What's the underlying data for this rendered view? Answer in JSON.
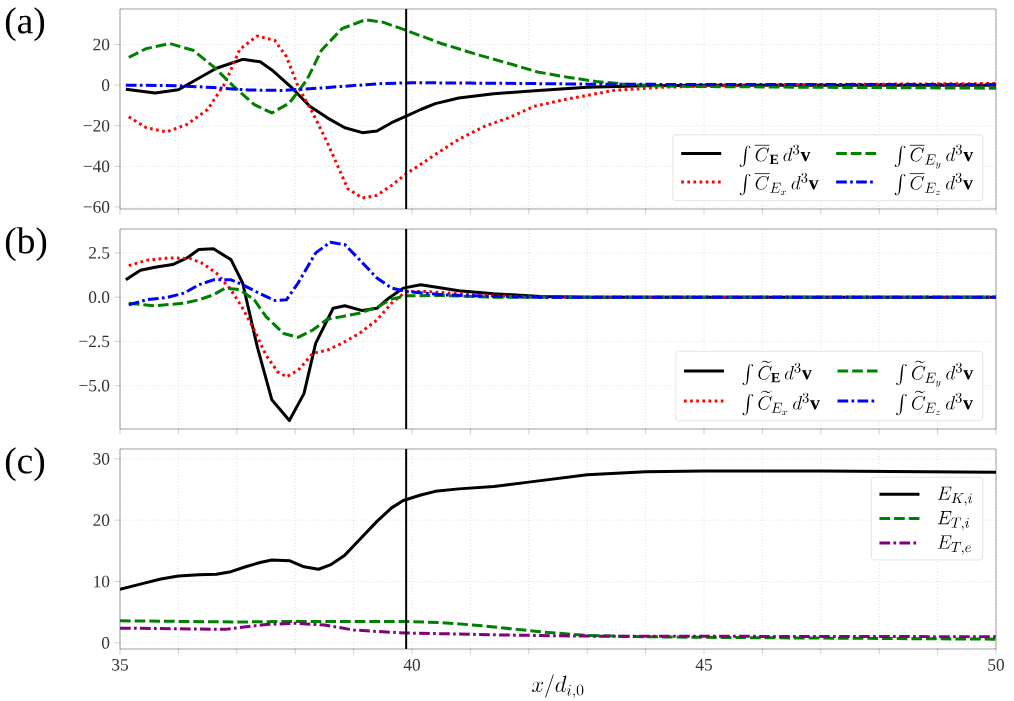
{
  "chart_data": [
    {
      "type": "line",
      "title": "(a)",
      "xlim": [
        35,
        50
      ],
      "ylim": [
        -61,
        37.5
      ],
      "xticks": [
        35,
        {
          "value": 36,
          "label": null
        },
        {
          "value": 37,
          "label": null
        },
        {
          "value": 38,
          "label": null
        },
        {
          "value": 39,
          "label": null
        },
        40,
        {
          "value": 41,
          "label": null
        },
        {
          "value": 42,
          "label": null
        },
        {
          "value": 43,
          "label": null
        },
        {
          "value": 44,
          "label": null
        },
        45,
        {
          "value": 46,
          "label": null
        },
        {
          "value": 47,
          "label": null
        },
        {
          "value": 48,
          "label": null
        },
        {
          "value": 49,
          "label": null
        },
        50
      ],
      "yticks": [
        {
          "value": -60,
          "label": "−60"
        },
        {
          "value": -40,
          "label": "−40"
        },
        {
          "value": -20,
          "label": "−20"
        },
        0,
        20
      ],
      "tick_labels": "y",
      "grid": true,
      "legend": "bottom right",
      "ref_lines": [
        {
          "axis": "x",
          "value": 39.9,
          "color": "#000000"
        }
      ],
      "series": [
        {
          "name": "\\int \\overline{C}_{\\mathbf{E}}\\, d^3\\mathbf{v}",
          "color": "#000000",
          "line_style": "solid",
          "x": [
            35.1,
            35.6,
            36.0,
            36.25,
            36.65,
            37.1,
            37.4,
            37.6,
            37.95,
            38.25,
            38.55,
            38.85,
            39.15,
            39.4,
            39.65,
            39.9,
            40.15,
            40.4,
            40.8,
            41.4,
            42.1,
            43,
            44,
            45,
            47,
            50
          ],
          "values": [
            -2,
            -3.9,
            -2.3,
            1.8,
            8.3,
            12.7,
            11.5,
            7.5,
            -1.5,
            -10.4,
            -16.1,
            -21,
            -23.4,
            -22.6,
            -18.5,
            -15.3,
            -12,
            -9.1,
            -6.3,
            -4.2,
            -2.8,
            -1,
            -0.3,
            0,
            0,
            0
          ]
        },
        {
          "name": "\\int \\overline{C}_{E_x}\\, d^3\\mathbf{v}",
          "color": "#ff0000",
          "line_style": "dotted",
          "x": [
            35.15,
            35.45,
            35.8,
            36.15,
            36.5,
            36.8,
            37.05,
            37.35,
            37.65,
            37.85,
            38.05,
            38.3,
            38.55,
            38.7,
            38.9,
            39.15,
            39.4,
            39.65,
            39.9,
            40.2,
            40.45,
            40.8,
            41.25,
            41.65,
            42.1,
            42.6,
            43.45,
            44.3,
            45.4,
            47,
            50
          ],
          "values": [
            -15.6,
            -21,
            -23,
            -19.3,
            -12,
            1,
            17.6,
            24.2,
            22,
            14,
            -0.7,
            -13.7,
            -28.3,
            -38,
            -51,
            -55.6,
            -54.3,
            -49.4,
            -43.7,
            -38,
            -33.2,
            -26.7,
            -20.2,
            -16.1,
            -10.4,
            -7.2,
            -2.6,
            -1,
            -0.3,
            0.3,
            0.8
          ]
        },
        {
          "name": "\\int \\overline{C}_{E_y}\\, d^3\\mathbf{v}",
          "color": "#008000",
          "line_style": "dashed",
          "x": [
            35.15,
            35.45,
            35.85,
            36.25,
            36.6,
            36.95,
            37.3,
            37.6,
            37.9,
            38.2,
            38.45,
            38.8,
            39.2,
            39.5,
            39.9,
            40.5,
            41.15,
            41.75,
            42.15,
            42.6,
            43.15,
            43.75,
            44.6,
            46.6,
            50
          ],
          "values": [
            13.7,
            18,
            20.5,
            17.2,
            9.1,
            -0.7,
            -9.6,
            -13.7,
            -8.8,
            2.6,
            17.2,
            27.8,
            32.2,
            31,
            27,
            20.5,
            14.8,
            9.9,
            6.5,
            4.2,
            1.8,
            0.2,
            -0.6,
            -1,
            -1.5
          ]
        },
        {
          "name": "\\int \\overline{C}_{E_z}\\, d^3\\mathbf{v}",
          "color": "#0000ff",
          "line_style": "dashdot",
          "x": [
            35.1,
            36,
            36.6,
            37.2,
            37.8,
            38.4,
            39,
            39.5,
            40,
            41,
            42,
            43,
            45,
            50
          ],
          "values": [
            0,
            -0.3,
            -1.2,
            -2.4,
            -2.6,
            -1.5,
            -0.2,
            0.8,
            1.2,
            1,
            0.8,
            0.5,
            0.3,
            0.3
          ]
        }
      ]
    },
    {
      "type": "line",
      "title": "(b)",
      "xlim": [
        35,
        50
      ],
      "ylim": [
        -7.45,
        3.85
      ],
      "xticks": [
        35,
        {
          "value": 36,
          "label": null
        },
        {
          "value": 37,
          "label": null
        },
        {
          "value": 38,
          "label": null
        },
        {
          "value": 39,
          "label": null
        },
        40,
        {
          "value": 41,
          "label": null
        },
        {
          "value": 42,
          "label": null
        },
        {
          "value": 43,
          "label": null
        },
        {
          "value": 44,
          "label": null
        },
        45,
        {
          "value": 46,
          "label": null
        },
        {
          "value": 47,
          "label": null
        },
        {
          "value": 48,
          "label": null
        },
        {
          "value": 49,
          "label": null
        },
        50
      ],
      "yticks": [
        {
          "value": -5,
          "label": "−5.0"
        },
        {
          "value": -2.5,
          "label": "−2.5"
        },
        {
          "value": 0,
          "label": "0.0"
        },
        2.5
      ],
      "tick_labels": "y",
      "grid": true,
      "legend": "bottom right",
      "ref_lines": [
        {
          "axis": "x",
          "value": 39.9,
          "color": "#000000"
        }
      ],
      "series": [
        {
          "name": "\\int \\widetilde{C}_{\\mathbf{E}}\\, d^3\\mathbf{v}",
          "color": "#000000",
          "line_style": "solid",
          "x": [
            35.1,
            35.35,
            35.6,
            35.9,
            36.15,
            36.35,
            36.6,
            36.9,
            37.1,
            37.35,
            37.6,
            37.9,
            38.15,
            38.35,
            38.65,
            38.85,
            39.15,
            39.4,
            39.6,
            39.85,
            40.15,
            40.45,
            40.8,
            41.4,
            42.2,
            43,
            45,
            50
          ],
          "values": [
            0.98,
            1.52,
            1.69,
            1.84,
            2.22,
            2.69,
            2.73,
            2.12,
            0.8,
            -2.8,
            -5.8,
            -6.97,
            -5.45,
            -2.61,
            -0.63,
            -0.49,
            -0.76,
            -0.63,
            -0.06,
            0.51,
            0.7,
            0.55,
            0.36,
            0.19,
            0.04,
            0,
            0,
            0
          ]
        },
        {
          "name": "\\int \\widetilde{C}_{E_x}\\, d^3\\mathbf{v}",
          "color": "#ff0000",
          "line_style": "dotted",
          "x": [
            35.15,
            35.45,
            35.85,
            36.2,
            36.4,
            36.65,
            36.9,
            37.1,
            37.3,
            37.5,
            37.7,
            37.85,
            38.05,
            38.3,
            38.55,
            38.8,
            39.1,
            39.4,
            39.65,
            39.9,
            40.25,
            40.8,
            41.4,
            42.2,
            45,
            50
          ],
          "values": [
            1.78,
            2.08,
            2.22,
            2.18,
            1.93,
            1.36,
            0.42,
            -0.63,
            -1.86,
            -3.28,
            -4.22,
            -4.5,
            -4.13,
            -3.18,
            -2.99,
            -2.61,
            -2.05,
            -1.29,
            -0.34,
            0.32,
            0.32,
            0.19,
            0.08,
            0,
            0,
            0
          ]
        },
        {
          "name": "\\int \\widetilde{C}_{E_y}\\, d^3\\mathbf{v}",
          "color": "#008000",
          "line_style": "dashed",
          "x": [
            35.15,
            35.6,
            36.1,
            36.35,
            36.6,
            36.8,
            37.05,
            37.3,
            37.5,
            37.8,
            38.05,
            38.3,
            38.55,
            38.8,
            39.1,
            39.4,
            39.65,
            39.9,
            40.55,
            41.4,
            45,
            50
          ],
          "values": [
            -0.34,
            -0.49,
            -0.34,
            -0.15,
            0.13,
            0.51,
            0.42,
            -0.15,
            -1.1,
            -2.05,
            -2.27,
            -1.86,
            -1.25,
            -1.1,
            -0.91,
            -0.57,
            -0.11,
            0.08,
            0.09,
            0,
            0,
            0
          ]
        },
        {
          "name": "\\int \\widetilde{C}_{E_z}\\, d^3\\mathbf{v}",
          "color": "#0000ff",
          "line_style": "dashdot",
          "x": [
            35.15,
            35.45,
            35.8,
            36.1,
            36.35,
            36.6,
            36.9,
            37.1,
            37.4,
            37.65,
            37.85,
            38.05,
            38.35,
            38.6,
            38.85,
            39.1,
            39.4,
            39.65,
            39.9,
            40.55,
            41.4,
            42.2,
            45,
            50
          ],
          "values": [
            -0.44,
            -0.15,
            -0.02,
            0.23,
            0.7,
            0.98,
            0.98,
            0.7,
            0.19,
            -0.19,
            -0.15,
            0.8,
            2.5,
            3.1,
            2.97,
            2.12,
            1.08,
            0.51,
            0.32,
            0.13,
            0.04,
            0,
            0,
            0
          ]
        }
      ]
    },
    {
      "type": "line",
      "title": "(c)",
      "xlabel": "x/d_{i,0}",
      "xlim": [
        35,
        50
      ],
      "ylim": [
        -1,
        31.6
      ],
      "xticks": [
        35,
        {
          "value": 36,
          "label": null
        },
        {
          "value": 37,
          "label": null
        },
        {
          "value": 38,
          "label": null
        },
        {
          "value": 39,
          "label": null
        },
        40,
        {
          "value": 41,
          "label": null
        },
        {
          "value": 42,
          "label": null
        },
        {
          "value": 43,
          "label": null
        },
        {
          "value": 44,
          "label": null
        },
        45,
        {
          "value": 46,
          "label": null
        },
        {
          "value": 47,
          "label": null
        },
        {
          "value": 48,
          "label": null
        },
        {
          "value": 49,
          "label": null
        },
        50
      ],
      "yticks": [
        0,
        10,
        20,
        30
      ],
      "grid": true,
      "legend": "top right",
      "ref_lines": [
        {
          "axis": "x",
          "value": 39.9,
          "color": "#000000"
        }
      ],
      "series": [
        {
          "name": "E_{K,i}",
          "color": "#000000",
          "line_style": "solid",
          "x": [
            35,
            35.4,
            35.7,
            36,
            36.35,
            36.65,
            36.9,
            37.15,
            37.4,
            37.6,
            37.9,
            38.15,
            38.4,
            38.6,
            38.85,
            39.1,
            39.4,
            39.65,
            39.85,
            40.15,
            40.4,
            40.8,
            41.4,
            42,
            43,
            44,
            45,
            47,
            50
          ],
          "values": [
            8.75,
            9.7,
            10.4,
            10.9,
            11.1,
            11.2,
            11.6,
            12.4,
            13.1,
            13.5,
            13.4,
            12.4,
            12,
            12.7,
            14.3,
            16.8,
            19.8,
            22,
            23.2,
            24.1,
            24.7,
            25.1,
            25.5,
            26.2,
            27.4,
            27.9,
            28,
            28,
            27.8
          ]
        },
        {
          "name": "E_{T,i}",
          "color": "#008000",
          "line_style": "dashed",
          "x": [
            35,
            36,
            37,
            38,
            39,
            39.9,
            40.5,
            41.2,
            41.8,
            42.2,
            43,
            44,
            45,
            50
          ],
          "values": [
            3.6,
            3.5,
            3.4,
            3.5,
            3.5,
            3.5,
            3.3,
            2.8,
            2.2,
            1.8,
            1.2,
            1,
            0.9,
            0.6
          ]
        },
        {
          "name": "E_{T,e}",
          "color": "#800080",
          "line_style": "dashdot",
          "x": [
            35,
            36,
            36.8,
            37.5,
            38,
            38.5,
            39,
            39.5,
            39.9,
            40.5,
            41.5,
            42.2,
            43,
            50
          ],
          "values": [
            2.4,
            2.3,
            2.2,
            3,
            3.2,
            2.9,
            2.1,
            1.8,
            1.6,
            1.5,
            1.3,
            1.2,
            1.1,
            1
          ]
        }
      ]
    }
  ]
}
